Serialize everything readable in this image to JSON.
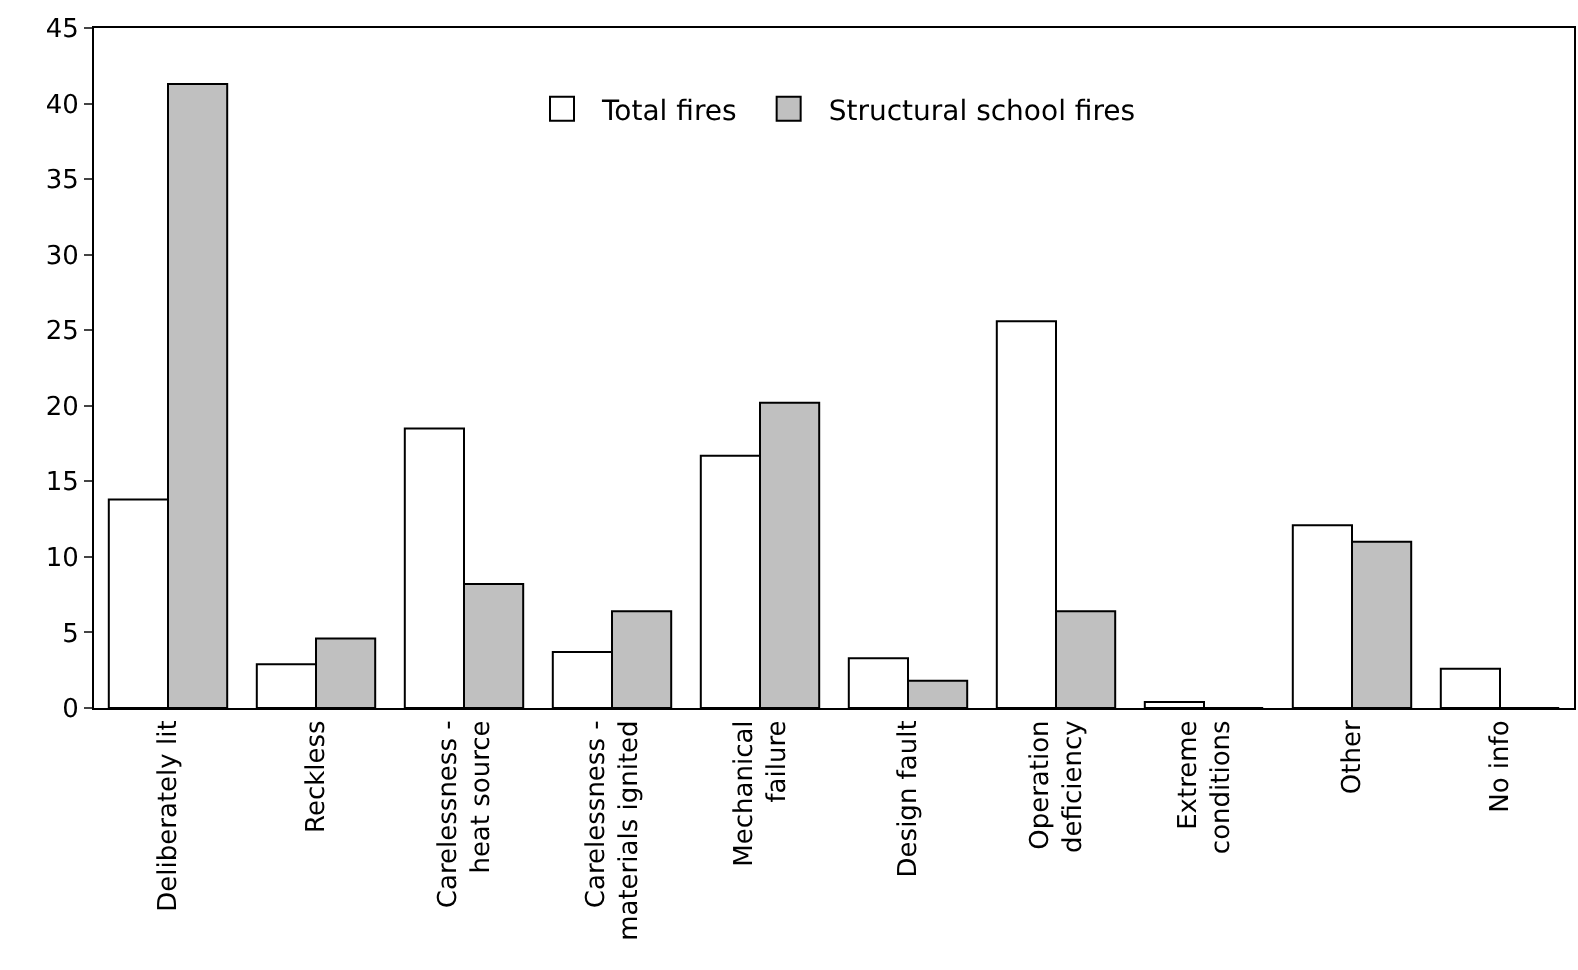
{
  "chart_data": {
    "type": "bar",
    "categories": [
      "Deliberately lit",
      "Reckless",
      "Carelessness -\nheat source",
      "Carelessness -\nmaterials ignited",
      "Mechanical\nfailure",
      "Design fault",
      "Operation\ndeficiency",
      "Extreme\nconditions",
      "Other",
      "No info"
    ],
    "series": [
      {
        "name": "Total fires",
        "color": "#ffffff",
        "values": [
          13.8,
          2.9,
          18.5,
          3.7,
          16.7,
          3.3,
          25.6,
          0.4,
          12.1,
          2.6
        ]
      },
      {
        "name": "Structural school fires",
        "color": "#c0c0c0",
        "values": [
          41.3,
          4.6,
          8.2,
          6.4,
          20.2,
          1.8,
          6.4,
          0,
          11.0,
          0
        ]
      }
    ],
    "ylim": [
      0,
      45
    ],
    "yticks": [
      0,
      5,
      10,
      15,
      20,
      25,
      30,
      35,
      40,
      45
    ],
    "grid": false,
    "legend": "top"
  }
}
